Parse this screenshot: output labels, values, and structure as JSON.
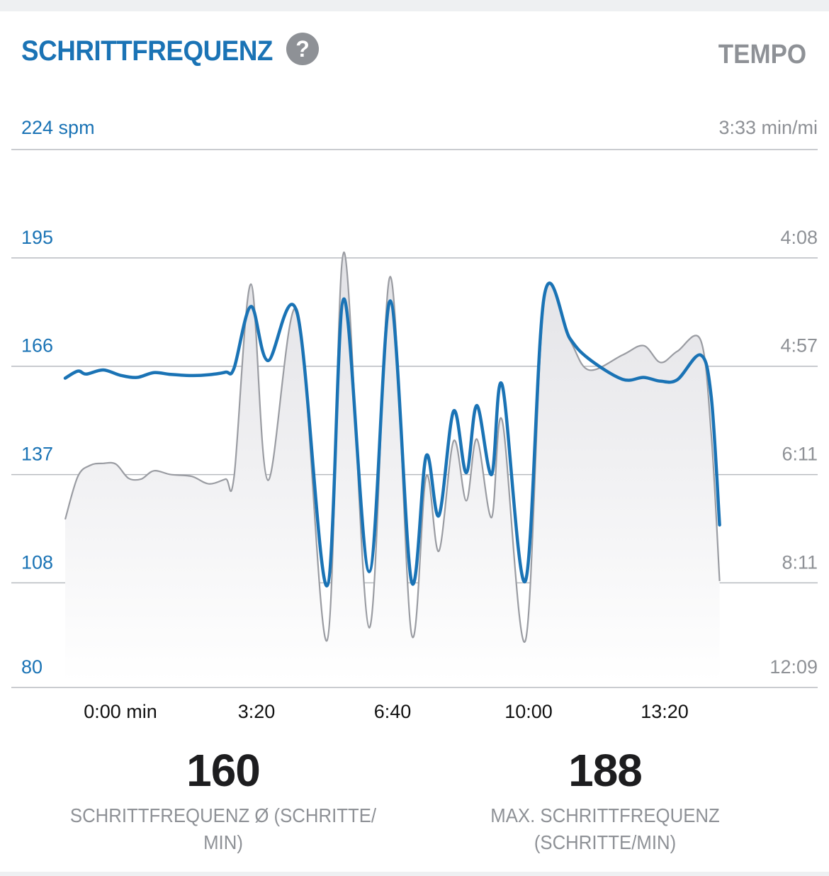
{
  "header": {
    "title": "SCHRITTFREQUENZ",
    "help_icon": "question-circle-icon",
    "toggle_label": "TEMPO"
  },
  "colors": {
    "accent": "#1a73b5",
    "secondary_gray": "#8e9196",
    "grid": "#b8bbc0",
    "area_fill": "#e9e9ec"
  },
  "chart_data": {
    "type": "line",
    "y_axis_left": {
      "unit_label": "224 spm",
      "ticks": [
        "195",
        "166",
        "137",
        "108",
        "80"
      ],
      "range": [
        80,
        224
      ]
    },
    "y_axis_right": {
      "unit_label": "3:33 min/mi",
      "ticks": [
        "4:08",
        "4:57",
        "6:11",
        "8:11",
        "12:09"
      ]
    },
    "x_axis": {
      "ticks": [
        "0:00 min",
        "3:20",
        "6:40",
        "10:00",
        "13:20"
      ],
      "range_minutes": [
        0,
        17
      ]
    },
    "grid": true,
    "series": [
      {
        "role": "cadence",
        "color": "#1a73b5",
        "points": [
          [
            0.0,
            162.8
          ],
          [
            0.3,
            164.7
          ],
          [
            0.5,
            163.9
          ],
          [
            0.9,
            165.0
          ],
          [
            1.3,
            163.6
          ],
          [
            1.7,
            163.0
          ],
          [
            2.1,
            164.3
          ],
          [
            2.5,
            163.8
          ],
          [
            3.0,
            163.5
          ],
          [
            3.4,
            163.7
          ],
          [
            3.8,
            164.4
          ],
          [
            4.0,
            165.5
          ],
          [
            4.4,
            182.0
          ],
          [
            4.8,
            167.5
          ],
          [
            5.5,
            180.0
          ],
          [
            6.2,
            107.2
          ],
          [
            6.6,
            184.0
          ],
          [
            7.2,
            111.0
          ],
          [
            7.7,
            183.5
          ],
          [
            8.2,
            108.5
          ],
          [
            8.55,
            142.0
          ],
          [
            8.85,
            126.0
          ],
          [
            9.2,
            154.0
          ],
          [
            9.5,
            137.5
          ],
          [
            9.75,
            155.5
          ],
          [
            10.1,
            137.0
          ],
          [
            10.35,
            161.0
          ],
          [
            10.9,
            108.5
          ],
          [
            11.35,
            185.0
          ],
          [
            11.95,
            173.5
          ],
          [
            12.4,
            168.0
          ],
          [
            13.2,
            162.5
          ],
          [
            13.7,
            163.0
          ],
          [
            14.1,
            162.0
          ],
          [
            14.5,
            162.4
          ],
          [
            15.05,
            169.0
          ],
          [
            15.3,
            158.0
          ],
          [
            15.5,
            123.5
          ]
        ]
      },
      {
        "role": "pace",
        "color": "#9a9ca2",
        "points": [
          [
            0.0,
            125.0
          ],
          [
            0.3,
            136.5
          ],
          [
            0.6,
            139.5
          ],
          [
            0.9,
            140.0
          ],
          [
            1.2,
            139.8
          ],
          [
            1.5,
            136.0
          ],
          [
            1.8,
            135.8
          ],
          [
            2.1,
            138.0
          ],
          [
            2.5,
            137.0
          ],
          [
            3.0,
            136.5
          ],
          [
            3.4,
            134.5
          ],
          [
            3.8,
            135.8
          ],
          [
            4.0,
            136.5
          ],
          [
            4.4,
            188.0
          ],
          [
            4.8,
            135.5
          ],
          [
            5.5,
            181.0
          ],
          [
            6.2,
            92.5
          ],
          [
            6.6,
            196.5
          ],
          [
            7.2,
            96.0
          ],
          [
            7.7,
            190.0
          ],
          [
            8.2,
            94.5
          ],
          [
            8.55,
            136.5
          ],
          [
            8.85,
            116.5
          ],
          [
            9.2,
            146.0
          ],
          [
            9.5,
            130.0
          ],
          [
            9.75,
            146.5
          ],
          [
            10.1,
            125.5
          ],
          [
            10.35,
            151.5
          ],
          [
            10.9,
            92.5
          ],
          [
            11.35,
            184.0
          ],
          [
            11.95,
            173.0
          ],
          [
            12.4,
            165.0
          ],
          [
            13.2,
            169.0
          ],
          [
            13.7,
            171.5
          ],
          [
            14.1,
            167.0
          ],
          [
            14.5,
            170.0
          ],
          [
            15.05,
            173.0
          ],
          [
            15.3,
            148.0
          ],
          [
            15.5,
            108.5
          ]
        ]
      }
    ]
  },
  "stats": [
    {
      "value": "160",
      "label": "SCHRITTFREQUENZ Ø (SCHRITTE/ MIN)"
    },
    {
      "value": "188",
      "label": "MAX. SCHRITTFREQUENZ (SCHRITTE/MIN)"
    }
  ]
}
